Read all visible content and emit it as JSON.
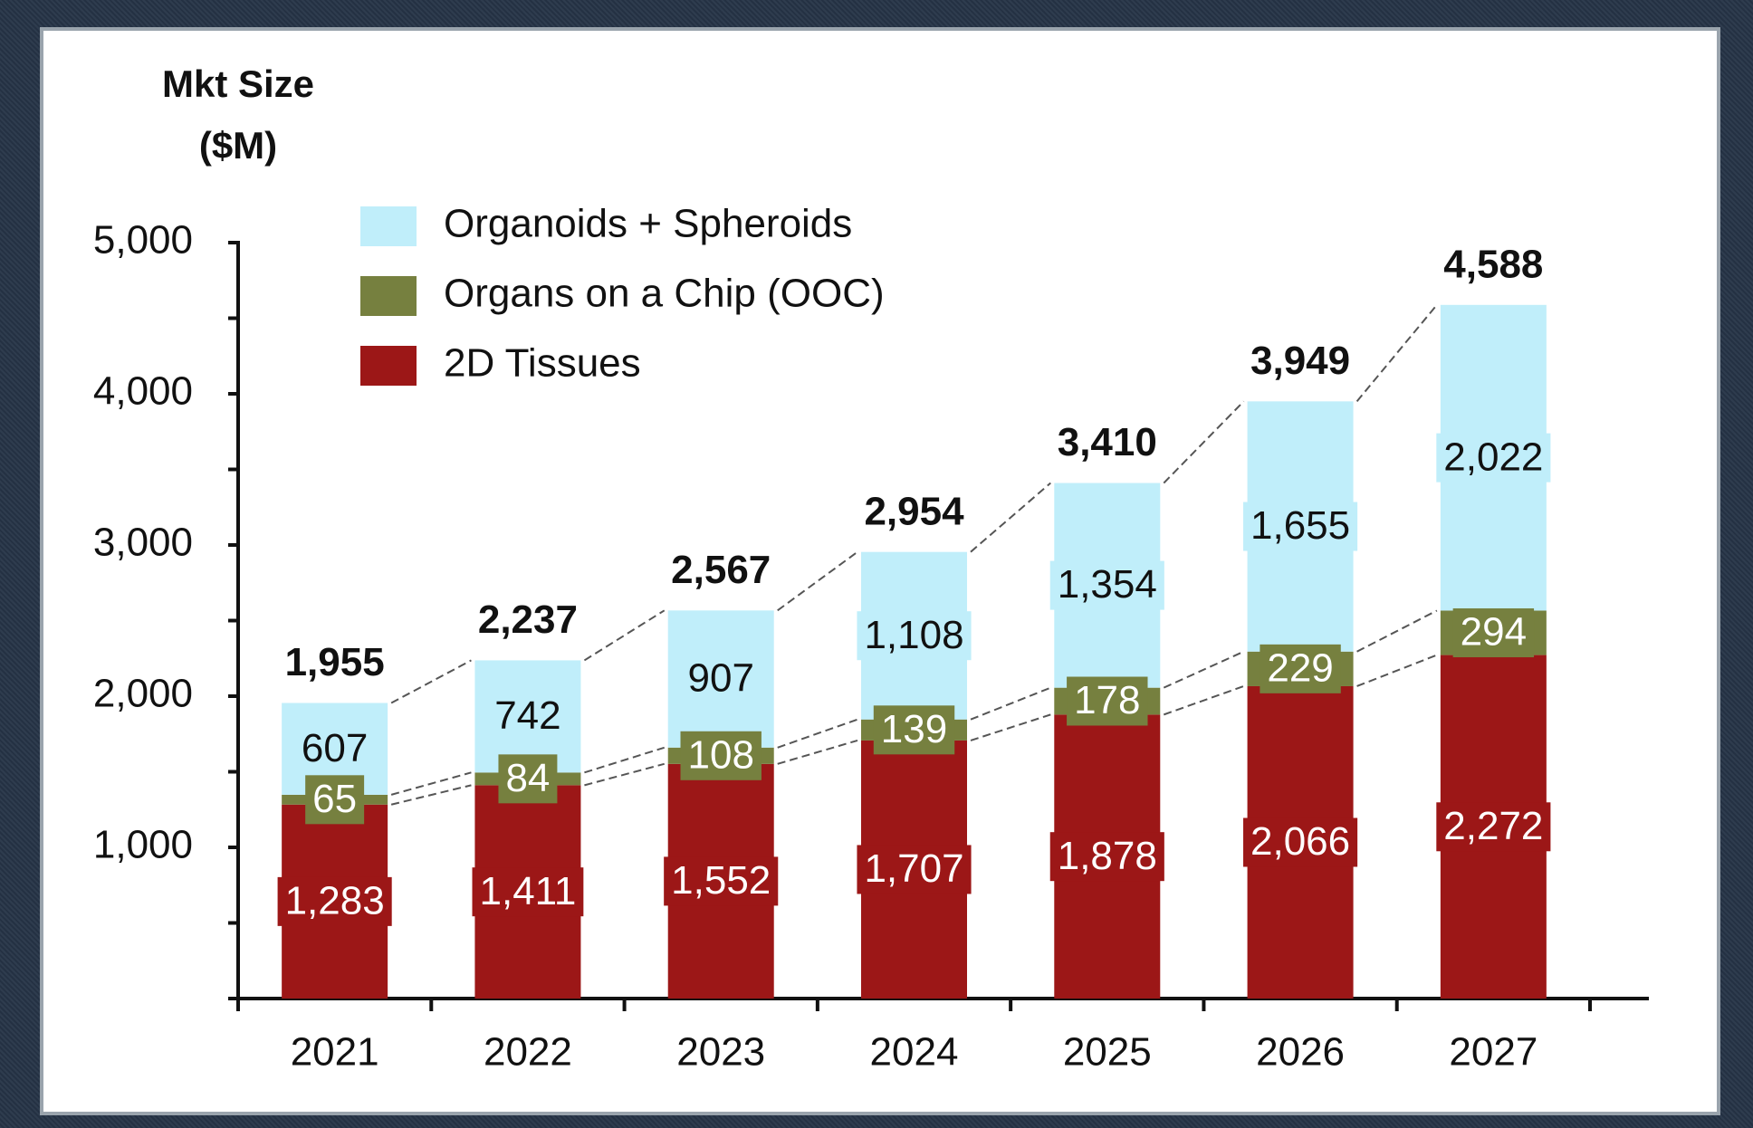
{
  "chart_data": {
    "type": "stacked_bar",
    "y_label": [
      "Mkt Size",
      "($M)"
    ],
    "categories": [
      "2021",
      "2022",
      "2023",
      "2024",
      "2025",
      "2026",
      "2027"
    ],
    "series": [
      {
        "name": "2D Tissues",
        "color": "#9c1717",
        "label_color": "#ffffff",
        "values": [
          1283,
          1411,
          1552,
          1707,
          1878,
          2066,
          2272
        ],
        "value_labels": [
          "1,283",
          "1,411",
          "1,552",
          "1,707",
          "1,878",
          "2,066",
          "2,272"
        ]
      },
      {
        "name": "Organs on a Chip (OOC)",
        "color": "#76803f",
        "label_color": "#ffffff",
        "values": [
          65,
          84,
          108,
          139,
          178,
          229,
          294
        ],
        "value_labels": [
          "65",
          "84",
          "108",
          "139",
          "178",
          "229",
          "294"
        ]
      },
      {
        "name": "Organoids + Spheroids",
        "color": "#c0eefa",
        "label_color": "#111111",
        "values": [
          607,
          742,
          907,
          1108,
          1354,
          1655,
          2022
        ],
        "value_labels": [
          "607",
          "742",
          "907",
          "1,108",
          "1,354",
          "1,655",
          "2,022"
        ]
      }
    ],
    "totals": {
      "values": [
        1955,
        2237,
        2567,
        2954,
        3410,
        3949,
        4588
      ],
      "value_labels": [
        "1,955",
        "2,237",
        "2,567",
        "2,954",
        "3,410",
        "3,949",
        "4,588"
      ]
    },
    "ylim": [
      0,
      5000
    ],
    "yticks": [
      0,
      {
        "value": 1000,
        "label": "1,000"
      },
      {
        "value": 2000,
        "label": "2,000"
      },
      {
        "value": 3000,
        "label": "3,000"
      },
      {
        "value": 4000,
        "label": "4,000"
      },
      {
        "value": 5000,
        "label": "5,000"
      }
    ],
    "yminorticks": [
      500,
      1500,
      2500,
      3500,
      4500
    ],
    "legend": "upper-left",
    "connectors": true
  }
}
